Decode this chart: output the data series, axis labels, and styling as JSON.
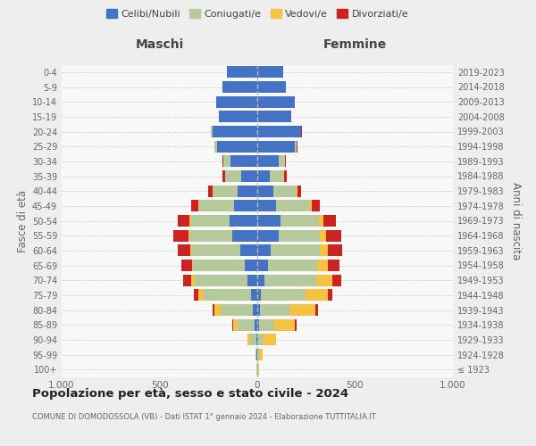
{
  "age_groups": [
    "100+",
    "95-99",
    "90-94",
    "85-89",
    "80-84",
    "75-79",
    "70-74",
    "65-69",
    "60-64",
    "55-59",
    "50-54",
    "45-49",
    "40-44",
    "35-39",
    "30-34",
    "25-29",
    "20-24",
    "15-19",
    "10-14",
    "5-9",
    "0-4"
  ],
  "birth_years": [
    "≤ 1923",
    "1924-1928",
    "1929-1933",
    "1934-1938",
    "1939-1943",
    "1944-1948",
    "1949-1953",
    "1954-1958",
    "1959-1963",
    "1964-1968",
    "1969-1973",
    "1974-1978",
    "1979-1983",
    "1984-1988",
    "1989-1993",
    "1994-1998",
    "1999-2003",
    "2004-2008",
    "2009-2013",
    "2014-2018",
    "2019-2023"
  ],
  "males_celibi": [
    2,
    3,
    6,
    12,
    22,
    32,
    50,
    65,
    85,
    130,
    140,
    118,
    100,
    82,
    135,
    205,
    230,
    195,
    210,
    178,
    155
  ],
  "males_coniugati": [
    1,
    6,
    32,
    90,
    165,
    240,
    270,
    262,
    250,
    218,
    200,
    180,
    128,
    82,
    38,
    14,
    7,
    2,
    0,
    0,
    0
  ],
  "males_vedovi": [
    0,
    2,
    12,
    22,
    32,
    28,
    16,
    8,
    6,
    5,
    5,
    3,
    2,
    1,
    1,
    0,
    0,
    0,
    0,
    0,
    0
  ],
  "males_divorziati": [
    0,
    0,
    2,
    5,
    10,
    22,
    42,
    55,
    65,
    75,
    60,
    35,
    20,
    14,
    5,
    2,
    1,
    0,
    0,
    0,
    0
  ],
  "females_nubili": [
    2,
    2,
    5,
    10,
    15,
    20,
    35,
    55,
    70,
    108,
    118,
    98,
    82,
    62,
    108,
    192,
    222,
    172,
    192,
    148,
    132
  ],
  "females_coniugate": [
    2,
    5,
    28,
    78,
    152,
    228,
    265,
    250,
    248,
    212,
    198,
    172,
    118,
    72,
    33,
    10,
    4,
    2,
    0,
    0,
    0
  ],
  "females_vedove": [
    3,
    22,
    62,
    102,
    128,
    112,
    82,
    56,
    42,
    30,
    20,
    10,
    5,
    2,
    1,
    1,
    0,
    0,
    0,
    0,
    0
  ],
  "females_divorziate": [
    0,
    0,
    2,
    10,
    15,
    25,
    45,
    60,
    75,
    80,
    68,
    40,
    20,
    14,
    5,
    2,
    1,
    0,
    0,
    0,
    0
  ],
  "color_celibi": "#4472c4",
  "color_coniugati": "#b5c99a",
  "color_vedovi": "#f5c242",
  "color_divorziati": "#cc2222",
  "title": "Popolazione per età, sesso e stato civile - 2024",
  "subtitle": "COMUNE DI DOMODOSSOLA (VB) - Dati ISTAT 1° gennaio 2024 - Elaborazione TUTTITALIA.IT",
  "label_maschi": "Maschi",
  "label_femmine": "Femmine",
  "label_fasce": "Fasce di età",
  "label_anni": "Anni di nascita",
  "legend_labels": [
    "Celibi/Nubili",
    "Coniugati/e",
    "Vedovi/e",
    "Divorziati/e"
  ],
  "bg_color": "#eeeeee",
  "plot_bg": "#f8f8f8",
  "xlim": 1000
}
